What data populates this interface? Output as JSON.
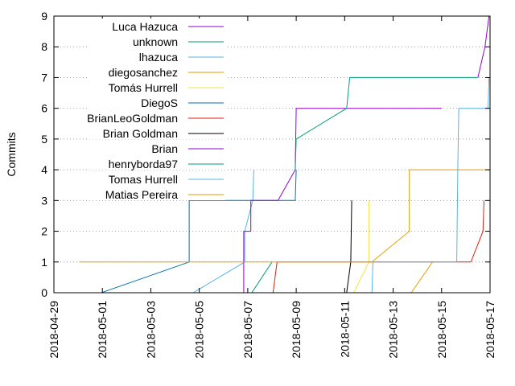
{
  "chart_data": {
    "type": "line",
    "title": "",
    "xlabel": "",
    "ylabel": "Commits",
    "xlim": [
      "2018-04-29",
      "2018-05-17"
    ],
    "ylim": [
      0,
      9
    ],
    "x_ticks": [
      "2018-04-29",
      "2018-05-01",
      "2018-05-03",
      "2018-05-05",
      "2018-05-07",
      "2018-05-09",
      "2018-05-11",
      "2018-05-13",
      "2018-05-15",
      "2018-05-17"
    ],
    "y_ticks": [
      0,
      1,
      2,
      3,
      4,
      5,
      6,
      7,
      8,
      9
    ],
    "grid": "horizontal dotted",
    "legend_position": "top-left",
    "series": [
      {
        "name": "Luca Hazuca",
        "color": "#9400D3",
        "points": [
          [
            "2018-05-16 12:00",
            7
          ],
          [
            "2018-05-16 19:00",
            8
          ],
          [
            "2018-05-16 23:00",
            9
          ]
        ]
      },
      {
        "name": "unknown",
        "color": "#009E73",
        "points": [
          [
            "2018-05-07 04:00",
            0
          ],
          [
            "2018-05-08 00:00",
            1
          ]
        ]
      },
      {
        "name": "lhazuca",
        "color": "#56B4E9",
        "points": [
          [
            "2018-05-04 18:00",
            0
          ],
          [
            "2018-05-06 21:00",
            1
          ],
          [
            "2018-05-06 21:01",
            2
          ],
          [
            "2018-05-07 05:00",
            3
          ],
          [
            "2018-05-07 06:00",
            4
          ]
        ]
      },
      {
        "name": "diegosanchez",
        "color": "#E69F00",
        "points": [
          [
            "2018-05-13 18:00",
            0
          ],
          [
            "2018-05-14 15:00",
            1
          ]
        ]
      },
      {
        "name": "Tomás Hurrell",
        "color": "#F0E442",
        "points": [
          [
            "2018-05-11 09:00",
            0
          ],
          [
            "2018-05-12 00:00",
            1
          ],
          [
            "2018-05-12 00:01",
            3
          ]
        ]
      },
      {
        "name": "DiegoS",
        "color": "#0072B2",
        "points": [
          [
            "2018-04-30 23:00",
            0
          ],
          [
            "2018-05-04 14:00",
            1
          ],
          [
            "2018-05-04 14:01",
            3
          ],
          [
            "2018-05-08 23:00",
            3
          ],
          [
            "2018-05-09 00:00",
            4
          ]
        ]
      },
      {
        "name": "BrianLeoGoldman",
        "color": "#E51E10",
        "points": [
          [
            "2018-05-08 01:00",
            0
          ],
          [
            "2018-05-08 05:00",
            1
          ],
          [
            "2018-05-16 05:00",
            1
          ],
          [
            "2018-05-16 17:00",
            2
          ],
          [
            "2018-05-16 18:00",
            3
          ]
        ]
      },
      {
        "name": "Brian Goldman",
        "color": "#000000",
        "points": [
          [
            "2018-05-11 02:00",
            0
          ],
          [
            "2018-05-11 06:00",
            1
          ],
          [
            "2018-05-11 07:00",
            3
          ]
        ]
      },
      {
        "name": "Brian",
        "color": "#9400D3",
        "points": [
          [
            "2018-05-06 20:00",
            0
          ],
          [
            "2018-05-06 20:01",
            2
          ],
          [
            "2018-05-07 03:00",
            2
          ],
          [
            "2018-05-07 03:01",
            3
          ],
          [
            "2018-05-08 06:00",
            3
          ],
          [
            "2018-05-08 23:00",
            4
          ],
          [
            "2018-05-09 00:00",
            6
          ],
          [
            "2018-05-15 00:00",
            6
          ]
        ]
      },
      {
        "name": "henryborda97",
        "color": "#009E73",
        "points": [
          [
            "2018-05-08 23:00",
            4
          ],
          [
            "2018-05-09 00:00",
            5
          ],
          [
            "2018-05-11 02:00",
            6
          ],
          [
            "2018-05-11 05:00",
            7
          ],
          [
            "2018-05-16 12:00",
            7
          ]
        ]
      },
      {
        "name": "Tomas Hurrell",
        "color": "#56B4E9",
        "points": [
          [
            "2018-05-12 03:00",
            0
          ],
          [
            "2018-05-12 04:00",
            1
          ],
          [
            "2018-05-15 15:00",
            1
          ],
          [
            "2018-05-15 16:00",
            4
          ],
          [
            "2018-05-15 17:00",
            6
          ],
          [
            "2018-05-16 22:00",
            6
          ],
          [
            "2018-05-16 23:00",
            7
          ]
        ]
      },
      {
        "name": "Matias Pereira",
        "color": "#E69F00",
        "points": [
          [
            "2018-04-30 01:00",
            1
          ],
          [
            "2018-05-12 03:00",
            1
          ],
          [
            "2018-05-13 16:00",
            2
          ],
          [
            "2018-05-13 16:01",
            4
          ],
          [
            "2018-05-17 00:00",
            4
          ]
        ]
      }
    ]
  }
}
